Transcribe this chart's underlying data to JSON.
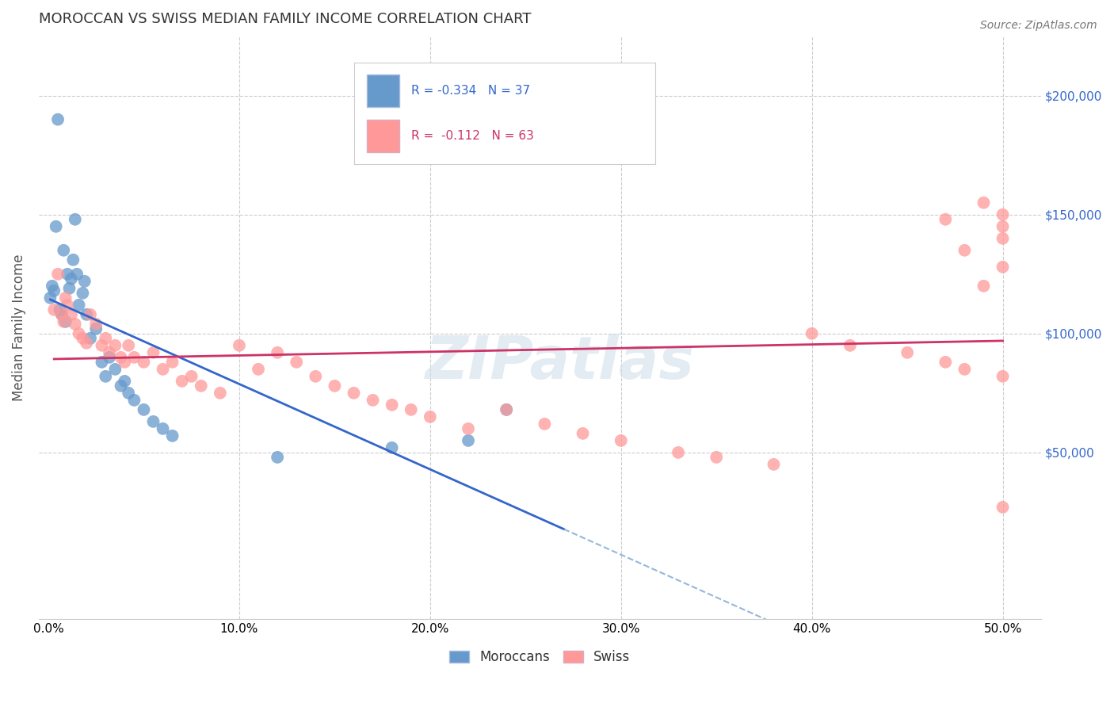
{
  "title": "MOROCCAN VS SWISS MEDIAN FAMILY INCOME CORRELATION CHART",
  "source": "Source: ZipAtlas.com",
  "ylabel": "Median Family Income",
  "ylim": [
    -20000,
    225000
  ],
  "xlim": [
    -0.005,
    0.52
  ],
  "legend_label1": "R = -0.334   N = 37",
  "legend_label2": "R =  -0.112   N = 63",
  "legend_bottom_label1": "Moroccans",
  "legend_bottom_label2": "Swiss",
  "blue_color": "#6699CC",
  "pink_color": "#FF9999",
  "line_blue": "#3366CC",
  "line_pink": "#CC3366",
  "watermark": "ZIPatlas",
  "blue_x": [
    0.001,
    0.002,
    0.003,
    0.004,
    0.005,
    0.006,
    0.007,
    0.008,
    0.009,
    0.01,
    0.011,
    0.012,
    0.013,
    0.014,
    0.015,
    0.016,
    0.018,
    0.019,
    0.02,
    0.022,
    0.025,
    0.028,
    0.03,
    0.032,
    0.035,
    0.038,
    0.04,
    0.042,
    0.045,
    0.05,
    0.055,
    0.06,
    0.065,
    0.12,
    0.18,
    0.22,
    0.24
  ],
  "blue_y": [
    115000,
    120000,
    118000,
    145000,
    190000,
    110000,
    108000,
    135000,
    105000,
    125000,
    119000,
    123000,
    131000,
    148000,
    125000,
    112000,
    117000,
    122000,
    108000,
    98000,
    102000,
    88000,
    82000,
    90000,
    85000,
    78000,
    80000,
    75000,
    72000,
    68000,
    63000,
    60000,
    57000,
    48000,
    52000,
    55000,
    68000
  ],
  "pink_x": [
    0.003,
    0.005,
    0.007,
    0.008,
    0.009,
    0.01,
    0.012,
    0.014,
    0.016,
    0.018,
    0.02,
    0.022,
    0.025,
    0.028,
    0.03,
    0.032,
    0.035,
    0.038,
    0.04,
    0.042,
    0.045,
    0.05,
    0.055,
    0.06,
    0.065,
    0.07,
    0.075,
    0.08,
    0.09,
    0.1,
    0.11,
    0.12,
    0.13,
    0.14,
    0.15,
    0.16,
    0.17,
    0.18,
    0.19,
    0.2,
    0.22,
    0.24,
    0.26,
    0.28,
    0.3,
    0.33,
    0.35,
    0.38,
    0.4,
    0.42,
    0.45,
    0.47,
    0.48,
    0.5,
    0.49,
    0.5,
    0.48,
    0.5,
    0.47,
    0.49,
    0.5,
    0.5,
    0.5
  ],
  "pink_y": [
    110000,
    125000,
    108000,
    105000,
    115000,
    112000,
    108000,
    104000,
    100000,
    98000,
    96000,
    108000,
    104000,
    95000,
    98000,
    92000,
    95000,
    90000,
    88000,
    95000,
    90000,
    88000,
    92000,
    85000,
    88000,
    80000,
    82000,
    78000,
    75000,
    95000,
    85000,
    92000,
    88000,
    82000,
    78000,
    75000,
    72000,
    70000,
    68000,
    65000,
    60000,
    68000,
    62000,
    58000,
    55000,
    50000,
    48000,
    45000,
    100000,
    95000,
    92000,
    88000,
    85000,
    82000,
    120000,
    128000,
    135000,
    140000,
    148000,
    155000,
    27000,
    150000,
    145000
  ]
}
